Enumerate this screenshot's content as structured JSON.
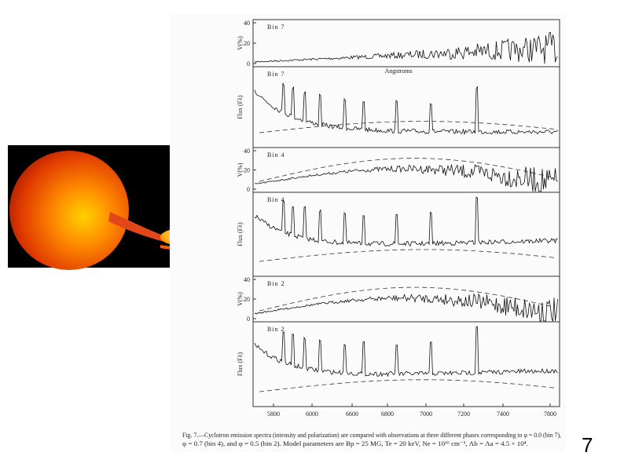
{
  "slide": {
    "figure": {
      "panels": [
        {
          "label": "Bin 7",
          "axis_label": "V(%)",
          "ticks": [
            "40",
            "20",
            "0"
          ]
        },
        {
          "label": "Bin 7",
          "axis_label": "Flux (Fλ)",
          "ticks": []
        },
        {
          "label": "Bin 4",
          "axis_label": "V(%)",
          "ticks": [
            "40",
            "20",
            "0"
          ]
        },
        {
          "label": "Bin 4",
          "axis_label": "Flux (Fλ)",
          "ticks": []
        },
        {
          "label": "Bin 2",
          "axis_label": "V(%)",
          "ticks": [
            "40",
            "20",
            "0"
          ]
        },
        {
          "label": "Bin 2",
          "axis_label": "Flux (Fλ)",
          "ticks": []
        }
      ],
      "x_axis_label": "Angstroms",
      "x_ticks": [
        "5800",
        "6000",
        "6600",
        "6800",
        "7000",
        "7200",
        "7400",
        "7800"
      ],
      "caption": [
        "Fig. 7.—Cyclotron emission spectra (intensity and polarization) are compared with observations at three different phases corresponding to φ = 0.0 (bin 7),",
        "φ = 0.7 (bin 4), and φ = 0.5 (bin 2). Model parameters are Bp = 25 MG, Te = 20 keV, Ne = 10¹⁶ cm⁻³, Λb = Λa = 4.5 × 10⁴."
      ]
    },
    "page_number": "7"
  }
}
